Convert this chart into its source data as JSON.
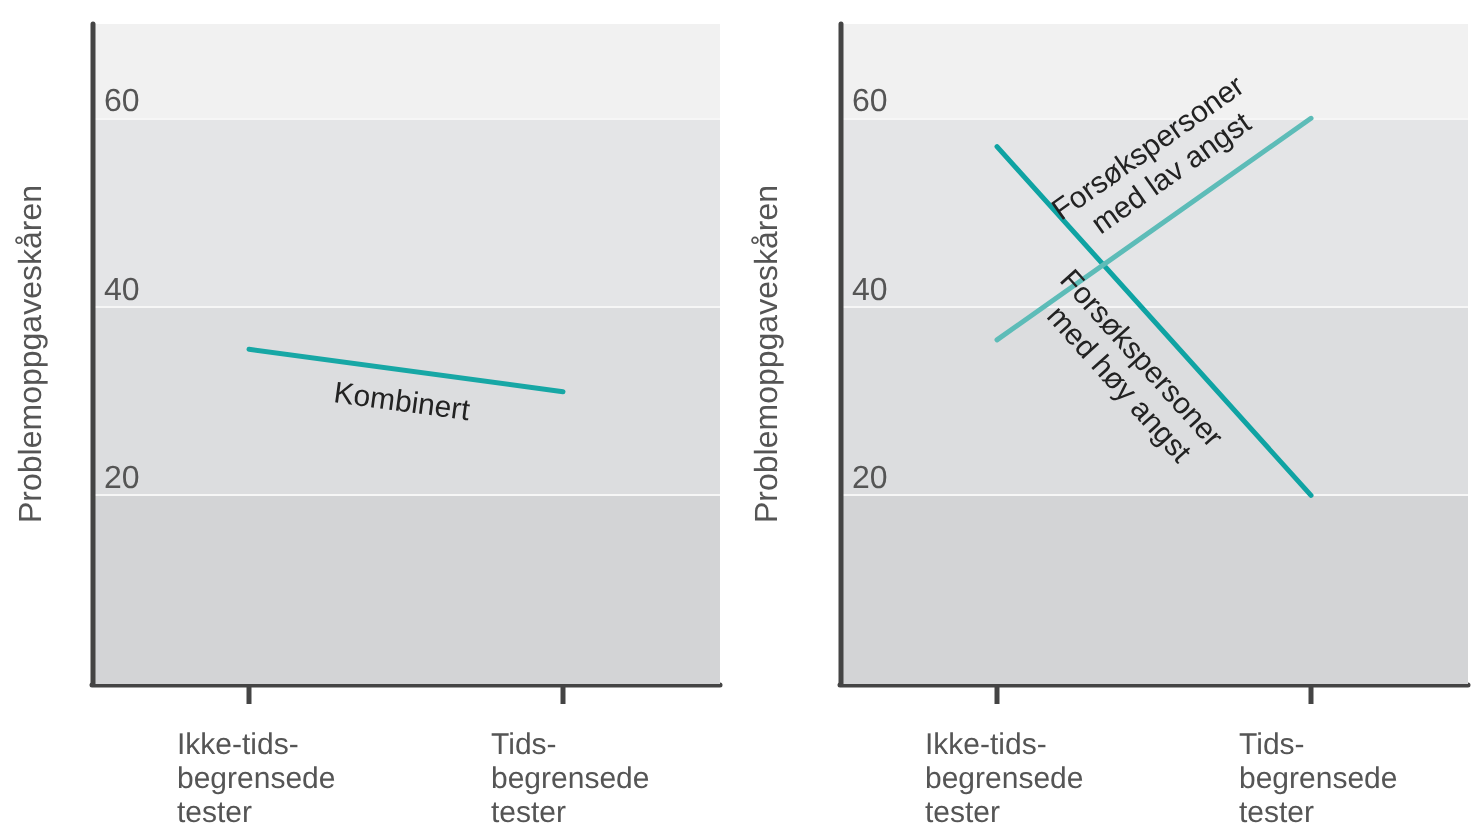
{
  "chart_data": [
    {
      "type": "line",
      "ylabel": "Problemoppgaveskåren",
      "categories": [
        "Ikke-tids-\nbegrensede\ntester",
        "Tids-\nbegrensede\ntester"
      ],
      "series": [
        {
          "name": "Kombinert",
          "color": "#17a7a5",
          "values": [
            35.5,
            31
          ]
        }
      ],
      "ylim": [
        0,
        70
      ],
      "yticks": [
        20,
        40,
        60
      ],
      "grid": "y",
      "marker": "none",
      "line_style": "solid",
      "bands": [
        {
          "axis": "y",
          "from": 0,
          "to": 20,
          "color": "#d3d4d6"
        },
        {
          "axis": "y",
          "from": 20,
          "to": 40,
          "color": "#dcdddf"
        },
        {
          "axis": "y",
          "from": 40,
          "to": 60,
          "color": "#e4e5e7"
        },
        {
          "axis": "y",
          "from": 60,
          "to": 70,
          "color": "#f1f1f1"
        }
      ]
    },
    {
      "type": "line",
      "ylabel": "Problemoppgaveskåren",
      "categories": [
        "Ikke-tids-\nbegrensede\ntester",
        "Tids-\nbegrensede\ntester"
      ],
      "series": [
        {
          "name": "Forsøkspersoner med høy angst",
          "color": "#0fa3a3",
          "values": [
            57,
            20
          ]
        },
        {
          "name": "Forsøkspersoner med lav angst",
          "color": "#5dbcb8",
          "values": [
            36.5,
            60
          ]
        }
      ],
      "ylim": [
        0,
        70
      ],
      "yticks": [
        20,
        40,
        60
      ],
      "grid": "y",
      "marker": "none",
      "line_style": "solid",
      "bands": [
        {
          "axis": "y",
          "from": 0,
          "to": 20,
          "color": "#d3d4d6"
        },
        {
          "axis": "y",
          "from": 20,
          "to": 40,
          "color": "#dcdddf"
        },
        {
          "axis": "y",
          "from": 40,
          "to": 60,
          "color": "#e4e5e7"
        },
        {
          "axis": "y",
          "from": 60,
          "to": 70,
          "color": "#f1f1f1"
        }
      ]
    }
  ]
}
